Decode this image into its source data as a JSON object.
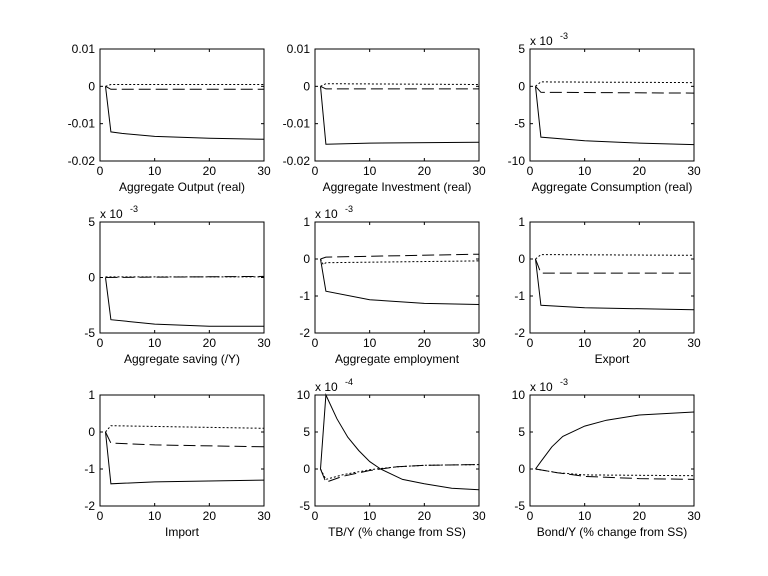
{
  "chart_data": [
    {
      "type": "line",
      "xlabel": "Aggregate Output (real)",
      "exponent": "",
      "xlim": [
        0,
        30
      ],
      "ylim": [
        -0.02,
        0.01
      ],
      "xticks": [
        0,
        10,
        20,
        30
      ],
      "yticks": [
        -0.02,
        -0.01,
        0,
        0.01
      ],
      "ytick_labels": [
        "-0.02",
        "-0.01",
        "0",
        "0.01"
      ],
      "series": [
        {
          "style": "solid",
          "points": [
            [
              1,
              0
            ],
            [
              2,
              -0.0122
            ],
            [
              4,
              -0.0126
            ],
            [
              10,
              -0.0134
            ],
            [
              20,
              -0.0139
            ],
            [
              30,
              -0.0142
            ]
          ]
        },
        {
          "style": "dashed",
          "points": [
            [
              1,
              0
            ],
            [
              2,
              -0.0008
            ],
            [
              30,
              -0.0008
            ]
          ]
        },
        {
          "style": "dotted",
          "points": [
            [
              1,
              0
            ],
            [
              2,
              0.0005
            ],
            [
              30,
              0.0005
            ]
          ]
        }
      ]
    },
    {
      "type": "line",
      "xlabel": "Aggregate Investment (real)",
      "exponent": "",
      "xlim": [
        0,
        30
      ],
      "ylim": [
        -0.02,
        0.01
      ],
      "xticks": [
        0,
        10,
        20,
        30
      ],
      "yticks": [
        -0.02,
        -0.01,
        0,
        0.01
      ],
      "ytick_labels": [
        "-0.02",
        "-0.01",
        "0",
        "0.01"
      ],
      "series": [
        {
          "style": "solid",
          "points": [
            [
              1,
              0
            ],
            [
              2,
              -0.0155
            ],
            [
              10,
              -0.0152
            ],
            [
              30,
              -0.015
            ]
          ]
        },
        {
          "style": "dashed",
          "points": [
            [
              1,
              0
            ],
            [
              2,
              -0.0007
            ],
            [
              30,
              -0.0007
            ]
          ]
        },
        {
          "style": "dotted",
          "points": [
            [
              1,
              0
            ],
            [
              2,
              0.0007
            ],
            [
              30,
              0.0005
            ]
          ]
        }
      ]
    },
    {
      "type": "line",
      "xlabel": "Aggregate Consumption (real)",
      "exponent": "-3",
      "xlim": [
        0,
        30
      ],
      "ylim": [
        -10,
        5
      ],
      "xticks": [
        0,
        10,
        20,
        30
      ],
      "yticks": [
        -10,
        -5,
        0,
        5
      ],
      "ytick_labels": [
        "-10",
        "-5",
        "0",
        "5"
      ],
      "series": [
        {
          "style": "solid",
          "points": [
            [
              1,
              0
            ],
            [
              2,
              -6.8
            ],
            [
              10,
              -7.3
            ],
            [
              20,
              -7.6
            ],
            [
              30,
              -7.8
            ]
          ]
        },
        {
          "style": "dashed",
          "points": [
            [
              1,
              0
            ],
            [
              2,
              -0.8
            ],
            [
              30,
              -0.9
            ]
          ]
        },
        {
          "style": "dotted",
          "points": [
            [
              1,
              0
            ],
            [
              2,
              0.6
            ],
            [
              30,
              0.5
            ]
          ]
        }
      ]
    },
    {
      "type": "line",
      "xlabel": "Aggregate saving (/Y)",
      "exponent": "-3",
      "xlim": [
        0,
        30
      ],
      "ylim": [
        -5,
        5
      ],
      "xticks": [
        0,
        10,
        20,
        30
      ],
      "yticks": [
        -5,
        0,
        5
      ],
      "ytick_labels": [
        "-5",
        "0",
        "5"
      ],
      "series": [
        {
          "style": "solid",
          "points": [
            [
              1,
              0
            ],
            [
              2,
              -3.8
            ],
            [
              10,
              -4.2
            ],
            [
              20,
              -4.4
            ],
            [
              30,
              -4.4
            ]
          ]
        },
        {
          "style": "dashed",
          "points": [
            [
              1,
              0
            ],
            [
              30,
              0.1
            ]
          ]
        },
        {
          "style": "dotted",
          "points": [
            [
              1,
              0.05
            ],
            [
              30,
              0.05
            ]
          ]
        }
      ]
    },
    {
      "type": "line",
      "xlabel": "Aggregate employment",
      "exponent": "-3",
      "xlim": [
        0,
        30
      ],
      "ylim": [
        -2,
        1
      ],
      "xticks": [
        0,
        10,
        20,
        30
      ],
      "yticks": [
        -2,
        -1,
        0,
        1
      ],
      "ytick_labels": [
        "-2",
        "-1",
        "0",
        "1"
      ],
      "series": [
        {
          "style": "solid",
          "points": [
            [
              1,
              0
            ],
            [
              2,
              -0.87
            ],
            [
              10,
              -1.1
            ],
            [
              20,
              -1.2
            ],
            [
              30,
              -1.23
            ]
          ]
        },
        {
          "style": "dashed",
          "points": [
            [
              1,
              0
            ],
            [
              2,
              0.05
            ],
            [
              30,
              0.13
            ]
          ]
        },
        {
          "style": "dotted",
          "points": [
            [
              1,
              0
            ],
            [
              1.5,
              -0.15
            ],
            [
              2,
              -0.1
            ],
            [
              30,
              -0.05
            ]
          ]
        }
      ]
    },
    {
      "type": "line",
      "xlabel": "Export",
      "exponent": "",
      "xlim": [
        0,
        30
      ],
      "ylim": [
        -2,
        1
      ],
      "xticks": [
        0,
        10,
        20,
        30
      ],
      "yticks": [
        -2,
        -1,
        0,
        1
      ],
      "ytick_labels": [
        "-2",
        "-1",
        "0",
        "1"
      ],
      "series": [
        {
          "style": "solid",
          "points": [
            [
              1,
              0
            ],
            [
              2,
              -1.25
            ],
            [
              10,
              -1.32
            ],
            [
              30,
              -1.37
            ]
          ]
        },
        {
          "style": "dashed",
          "points": [
            [
              1,
              0
            ],
            [
              2,
              -0.38
            ],
            [
              30,
              -0.38
            ]
          ]
        },
        {
          "style": "dotted",
          "points": [
            [
              1,
              0
            ],
            [
              2,
              0.12
            ],
            [
              30,
              0.1
            ]
          ]
        }
      ]
    },
    {
      "type": "line",
      "xlabel": "Import",
      "exponent": "",
      "xlim": [
        0,
        30
      ],
      "ylim": [
        -2,
        1
      ],
      "xticks": [
        0,
        10,
        20,
        30
      ],
      "yticks": [
        -2,
        -1,
        0,
        1
      ],
      "ytick_labels": [
        "-2",
        "-1",
        "0",
        "1"
      ],
      "series": [
        {
          "style": "solid",
          "points": [
            [
              1,
              0
            ],
            [
              2,
              -1.4
            ],
            [
              10,
              -1.35
            ],
            [
              30,
              -1.3
            ]
          ]
        },
        {
          "style": "dashed",
          "points": [
            [
              1,
              0
            ],
            [
              2,
              -0.3
            ],
            [
              10,
              -0.35
            ],
            [
              30,
              -0.4
            ]
          ]
        },
        {
          "style": "dotted",
          "points": [
            [
              1,
              0
            ],
            [
              2,
              0.17
            ],
            [
              30,
              0.1
            ]
          ]
        }
      ]
    },
    {
      "type": "line",
      "xlabel": "TB/Y (% change from SS)",
      "exponent": "-4",
      "xlim": [
        0,
        30
      ],
      "ylim": [
        -5,
        10
      ],
      "xticks": [
        0,
        10,
        20,
        30
      ],
      "yticks": [
        -5,
        0,
        5,
        10
      ],
      "ytick_labels": [
        "-5",
        "0",
        "5",
        "10"
      ],
      "series": [
        {
          "style": "solid",
          "points": [
            [
              1,
              0
            ],
            [
              2,
              10
            ],
            [
              4,
              6.8
            ],
            [
              6,
              4.3
            ],
            [
              8,
              2.5
            ],
            [
              10,
              1
            ],
            [
              12,
              0
            ],
            [
              16,
              -1.4
            ],
            [
              20,
              -2
            ],
            [
              25,
              -2.6
            ],
            [
              30,
              -2.8
            ]
          ]
        },
        {
          "style": "dashed",
          "points": [
            [
              1,
              0
            ],
            [
              2,
              -1.8
            ],
            [
              5,
              -1
            ],
            [
              10,
              -0.2
            ],
            [
              15,
              0.3
            ],
            [
              20,
              0.5
            ],
            [
              30,
              0.6
            ]
          ]
        },
        {
          "style": "dotted",
          "points": [
            [
              1,
              0
            ],
            [
              2,
              -1.4
            ],
            [
              5,
              -0.8
            ],
            [
              10,
              -0.1
            ],
            [
              15,
              0.3
            ],
            [
              20,
              0.5
            ],
            [
              30,
              0.6
            ]
          ]
        }
      ]
    },
    {
      "type": "line",
      "xlabel": "Bond/Y (% change from SS)",
      "exponent": "-3",
      "xlim": [
        0,
        30
      ],
      "ylim": [
        -5,
        10
      ],
      "xticks": [
        0,
        10,
        20,
        30
      ],
      "yticks": [
        -5,
        0,
        5,
        10
      ],
      "ytick_labels": [
        "-5",
        "0",
        "5",
        "10"
      ],
      "series": [
        {
          "style": "solid",
          "points": [
            [
              1,
              0
            ],
            [
              2,
              1
            ],
            [
              4,
              3
            ],
            [
              6,
              4.4
            ],
            [
              10,
              5.8
            ],
            [
              14,
              6.6
            ],
            [
              20,
              7.3
            ],
            [
              30,
              7.7
            ]
          ]
        },
        {
          "style": "dashed",
          "points": [
            [
              1,
              0
            ],
            [
              5,
              -0.5
            ],
            [
              10,
              -1
            ],
            [
              20,
              -1.3
            ],
            [
              30,
              -1.4
            ]
          ]
        },
        {
          "style": "dotted",
          "points": [
            [
              1,
              0
            ],
            [
              5,
              -0.5
            ],
            [
              10,
              -0.8
            ],
            [
              30,
              -0.9
            ]
          ]
        }
      ]
    }
  ],
  "exponent_prefix": "x 10",
  "colors": {
    "line": "#000000",
    "background": "#ffffff"
  }
}
